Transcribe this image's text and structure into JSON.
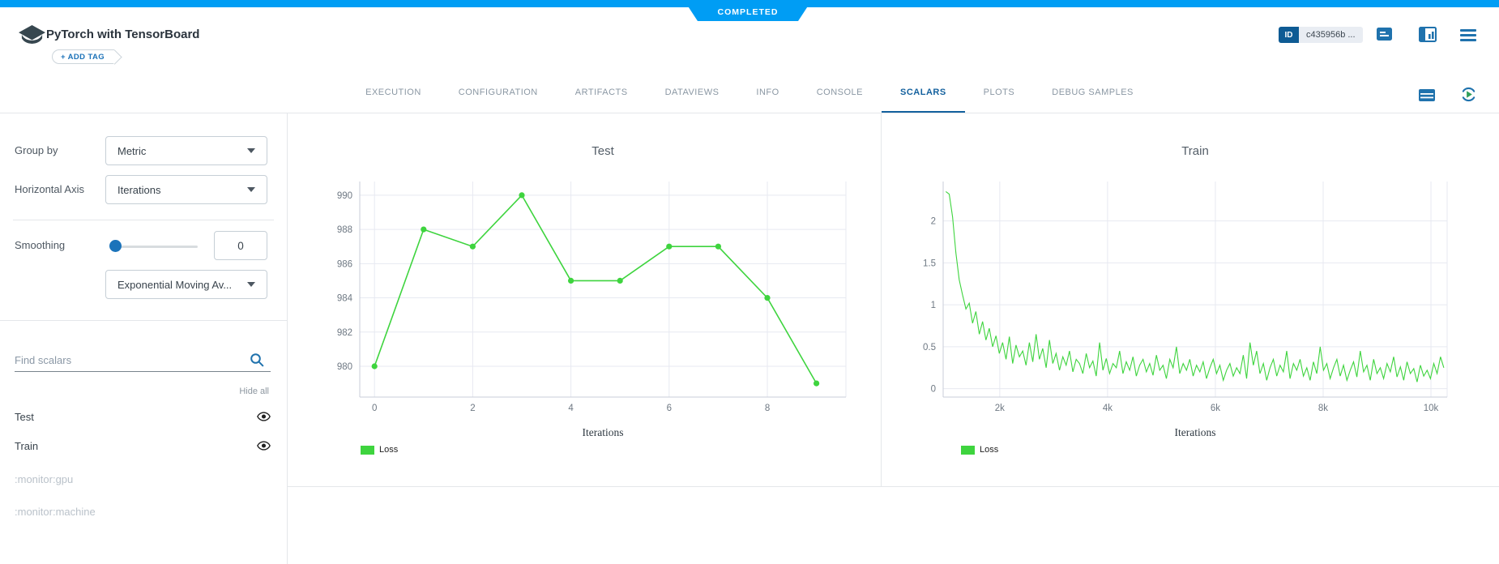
{
  "status_banner": {
    "label": "COMPLETED"
  },
  "header": {
    "title": "PyTorch with TensorBoard",
    "add_tag_label": "+ ADD TAG",
    "id_label": "ID",
    "id_value": "c435956b ..."
  },
  "tabs": {
    "items": [
      "EXECUTION",
      "CONFIGURATION",
      "ARTIFACTS",
      "DATAVIEWS",
      "INFO",
      "CONSOLE",
      "SCALARS",
      "PLOTS",
      "DEBUG SAMPLES"
    ],
    "active": "SCALARS"
  },
  "sidebar": {
    "group_by_label": "Group by",
    "group_by_value": "Metric",
    "horizontal_axis_label": "Horizontal Axis",
    "horizontal_axis_value": "Iterations",
    "smoothing_label": "Smoothing",
    "smoothing_value": "0",
    "smoothing_type_value": "Exponential Moving Av...",
    "find_placeholder": "Find scalars",
    "hide_all_label": "Hide all",
    "metrics": [
      {
        "label": "Test",
        "visible": true
      },
      {
        "label": "Train",
        "visible": true
      }
    ],
    "monitors": [
      ":monitor:gpu",
      ":monitor:machine"
    ]
  },
  "icons": [
    "experiment-logo",
    "comment-icon",
    "split-panel-icon",
    "menu-icon",
    "table-view-icon",
    "auto-refresh-icon",
    "search-icon",
    "eye-icon",
    "chevron-down-icon"
  ],
  "colors": {
    "banner_blue": "#009df4",
    "accent_blue": "#1f72ad",
    "active_tab_blue": "#14619e",
    "series_green": "#3ed43e",
    "grid": "#e7e9f1"
  },
  "chart_data": [
    {
      "type": "line",
      "title": "Test",
      "xlabel": "Iterations",
      "legend_position": "bottom-left",
      "grid": true,
      "markers": true,
      "xlim": [
        -0.3,
        9.6
      ],
      "ylim": [
        978.2,
        990.8
      ],
      "xticks": [
        {
          "v": 0,
          "label": "0"
        },
        {
          "v": 2,
          "label": "2"
        },
        {
          "v": 4,
          "label": "4"
        },
        {
          "v": 6,
          "label": "6"
        },
        {
          "v": 8,
          "label": "8"
        }
      ],
      "yticks": [
        {
          "v": 980,
          "label": "980"
        },
        {
          "v": 982,
          "label": "982"
        },
        {
          "v": 984,
          "label": "984"
        },
        {
          "v": 986,
          "label": "986"
        },
        {
          "v": 988,
          "label": "988"
        },
        {
          "v": 990,
          "label": "990"
        }
      ],
      "series": [
        {
          "name": "Loss",
          "color": "#3ed43e",
          "x": [
            0,
            1,
            2,
            3,
            4,
            5,
            6,
            7,
            8,
            9
          ],
          "y": [
            980,
            988,
            987,
            990,
            985,
            985,
            987,
            987,
            984,
            979
          ]
        }
      ]
    },
    {
      "type": "line",
      "title": "Train",
      "xlabel": "Iterations",
      "legend_position": "bottom-left",
      "grid": true,
      "markers": false,
      "xlim": [
        950,
        10300
      ],
      "ylim": [
        -0.1,
        2.47
      ],
      "xticks": [
        {
          "v": 2000,
          "label": "2k"
        },
        {
          "v": 4000,
          "label": "4k"
        },
        {
          "v": 6000,
          "label": "6k"
        },
        {
          "v": 8000,
          "label": "8k"
        },
        {
          "v": 10000,
          "label": "10k"
        }
      ],
      "yticks": [
        {
          "v": 0,
          "label": "0"
        },
        {
          "v": 0.5,
          "label": "0.5"
        },
        {
          "v": 1,
          "label": "1"
        },
        {
          "v": 1.5,
          "label": "1.5"
        },
        {
          "v": 2,
          "label": "2"
        }
      ],
      "series": [
        {
          "name": "Loss",
          "color": "#3ed43e",
          "x_start": 1000,
          "x_step": 62,
          "y": [
            2.35,
            2.32,
            2.05,
            1.62,
            1.3,
            1.12,
            0.95,
            1.02,
            0.78,
            0.92,
            0.65,
            0.8,
            0.58,
            0.72,
            0.5,
            0.63,
            0.42,
            0.55,
            0.35,
            0.62,
            0.3,
            0.52,
            0.38,
            0.45,
            0.28,
            0.55,
            0.32,
            0.65,
            0.35,
            0.48,
            0.25,
            0.58,
            0.3,
            0.42,
            0.22,
            0.38,
            0.28,
            0.45,
            0.2,
            0.35,
            0.3,
            0.18,
            0.42,
            0.25,
            0.33,
            0.15,
            0.55,
            0.22,
            0.36,
            0.18,
            0.3,
            0.25,
            0.45,
            0.18,
            0.32,
            0.22,
            0.38,
            0.15,
            0.28,
            0.35,
            0.2,
            0.3,
            0.16,
            0.4,
            0.22,
            0.28,
            0.12,
            0.35,
            0.25,
            0.5,
            0.18,
            0.3,
            0.22,
            0.35,
            0.15,
            0.28,
            0.2,
            0.32,
            0.12,
            0.25,
            0.35,
            0.18,
            0.28,
            0.1,
            0.22,
            0.3,
            0.15,
            0.25,
            0.18,
            0.4,
            0.12,
            0.55,
            0.28,
            0.45,
            0.18,
            0.3,
            0.1,
            0.25,
            0.35,
            0.15,
            0.28,
            0.2,
            0.45,
            0.12,
            0.3,
            0.22,
            0.35,
            0.15,
            0.25,
            0.1,
            0.32,
            0.18,
            0.5,
            0.22,
            0.3,
            0.12,
            0.25,
            0.35,
            0.15,
            0.28,
            0.1,
            0.22,
            0.32,
            0.14,
            0.45,
            0.2,
            0.28,
            0.1,
            0.35,
            0.18,
            0.25,
            0.12,
            0.3,
            0.2,
            0.38,
            0.14,
            0.26,
            0.1,
            0.32,
            0.18,
            0.24,
            0.08,
            0.28,
            0.15,
            0.22,
            0.12,
            0.3,
            0.18,
            0.38,
            0.25
          ]
        }
      ]
    }
  ]
}
